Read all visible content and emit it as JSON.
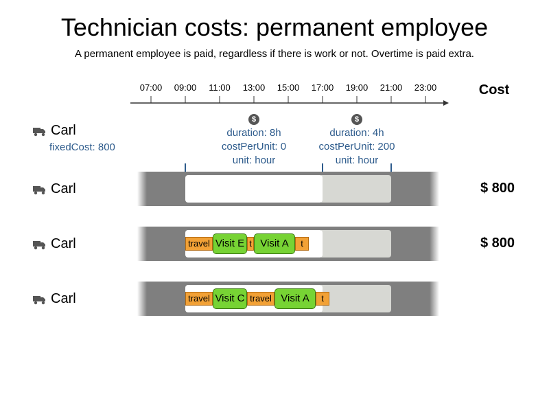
{
  "title": "Technician costs: permanent employee",
  "subtitle": "A permanent employee is paid, regardless if there is work or not. Overtime is paid extra.",
  "cost_header": "Cost",
  "timeline": {
    "ticks": [
      "07:00",
      "09:00",
      "11:00",
      "13:00",
      "15:00",
      "17:00",
      "19:00",
      "21:00",
      "23:00"
    ]
  },
  "technician": {
    "name": "Carl",
    "fixed_cost_label": "fixedCost: 800"
  },
  "periods": [
    {
      "start": "09:00",
      "end": "17:00",
      "duration": "duration: 8h",
      "cost_per_unit": "costPerUnit: 0",
      "unit": "unit: hour",
      "icon": "dollar-icon"
    },
    {
      "start": "17:00",
      "end": "21:00",
      "duration": "duration: 4h",
      "cost_per_unit": "costPerUnit: 200",
      "unit": "unit: hour",
      "icon": "dollar-icon"
    }
  ],
  "rows": [
    {
      "name": "Carl",
      "cost": "$ 800",
      "segments": []
    },
    {
      "name": "Carl",
      "cost": "$ 800",
      "segments": [
        {
          "kind": "travel",
          "label": "travel"
        },
        {
          "kind": "visit",
          "label": "Visit E"
        },
        {
          "kind": "travel",
          "label": "t"
        },
        {
          "kind": "visit",
          "label": "Visit A"
        },
        {
          "kind": "travel",
          "label": "t"
        }
      ]
    },
    {
      "name": "Carl",
      "cost": "",
      "segments": [
        {
          "kind": "travel",
          "label": "travel"
        },
        {
          "kind": "visit",
          "label": "Visit C"
        },
        {
          "kind": "travel",
          "label": "travel"
        },
        {
          "kind": "visit",
          "label": "Visit A"
        },
        {
          "kind": "travel",
          "label": "t"
        }
      ]
    }
  ],
  "colors": {
    "travel": "#f2a136",
    "visit": "#77d334",
    "info_text": "#2d5b8c",
    "band": "#7f7f7f",
    "overtime": "#d7d8d3"
  }
}
